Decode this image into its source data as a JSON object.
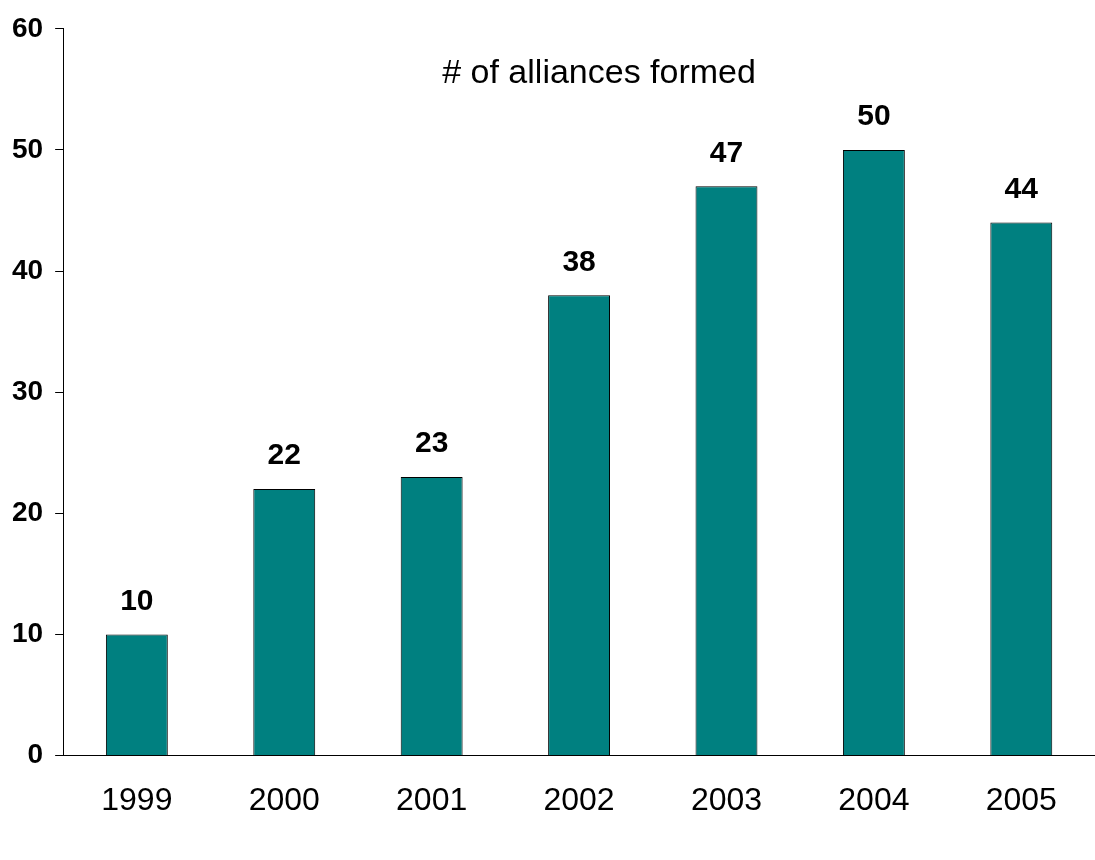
{
  "chart_data": {
    "type": "bar",
    "title": "# of alliances formed",
    "categories": [
      "1999",
      "2000",
      "2001",
      "2002",
      "2003",
      "2004",
      "2005"
    ],
    "values": [
      10,
      22,
      23,
      38,
      47,
      50,
      44
    ],
    "color": "#008080",
    "ylim": [
      0,
      60
    ],
    "yticks": [
      0,
      10,
      20,
      30,
      40,
      50,
      60
    ],
    "grid": false,
    "legend": false,
    "data_labels": true
  }
}
